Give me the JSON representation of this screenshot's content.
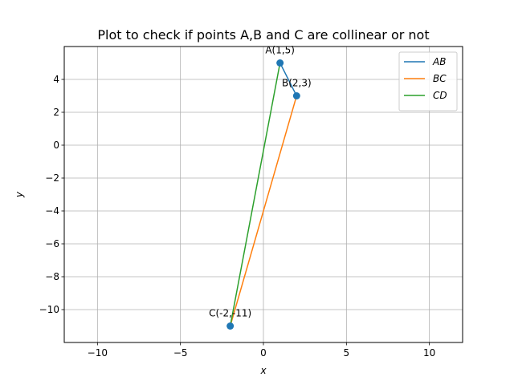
{
  "chart_data": {
    "type": "line",
    "title": "Plot to check if points A,B and C are collinear or not",
    "xlabel": "x",
    "ylabel": "y",
    "xlim": [
      -12,
      12
    ],
    "ylim": [
      -12,
      6
    ],
    "xticks": [
      -10,
      -5,
      0,
      5,
      10
    ],
    "yticks": [
      -10,
      -8,
      -6,
      -4,
      -2,
      0,
      2,
      4
    ],
    "grid": true,
    "legend_position": "top-right",
    "series": [
      {
        "name": "AB",
        "color": "#1f77b4",
        "x": [
          1,
          2
        ],
        "y": [
          5,
          3
        ]
      },
      {
        "name": "BC",
        "color": "#ff7f0e",
        "x": [
          2,
          -2
        ],
        "y": [
          3,
          -11
        ]
      },
      {
        "name": "CD",
        "color": "#2ca02c",
        "x": [
          -2,
          1
        ],
        "y": [
          -11,
          5
        ]
      }
    ],
    "points": [
      {
        "label": "A(1,5)",
        "x": 1,
        "y": 5,
        "color": "#1f77b4"
      },
      {
        "label": "B(2,3)",
        "x": 2,
        "y": 3,
        "color": "#1f77b4"
      },
      {
        "label": "C(-2,-11)",
        "x": -2,
        "y": -11,
        "color": "#1f77b4"
      }
    ]
  }
}
